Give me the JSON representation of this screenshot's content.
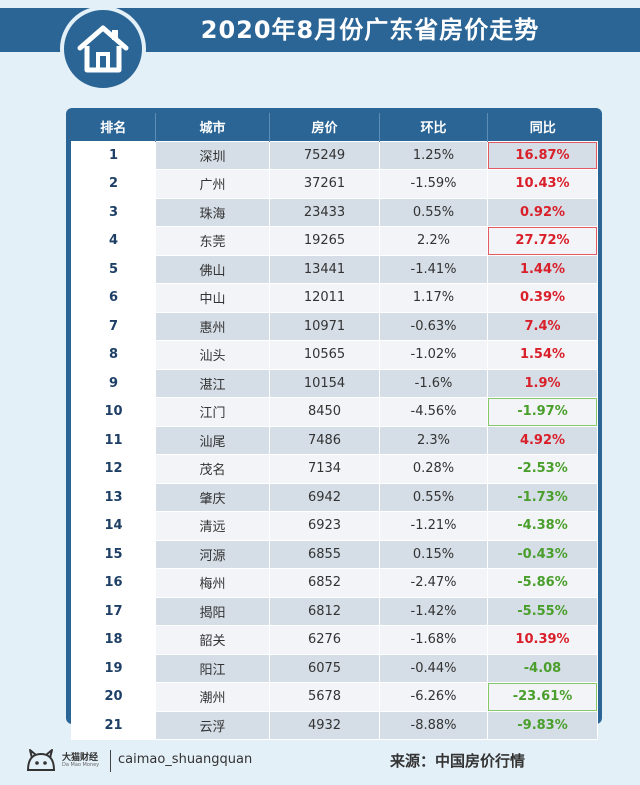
{
  "title": "2020年8月份广东省房价走势",
  "icons": {
    "logo": "house-icon",
    "brand": "cat-logo-icon"
  },
  "colors": {
    "header": "#2b6595",
    "up": "#d9202a",
    "down": "#4a9f2c"
  },
  "table": {
    "headers": [
      "排名",
      "城市",
      "房价",
      "环比",
      "同比"
    ],
    "rows": [
      {
        "rank": "1",
        "city": "深圳",
        "price": "75249",
        "mom": "1.25%",
        "yoy": "16.87%",
        "trend": "up"
      },
      {
        "rank": "2",
        "city": "广州",
        "price": "37261",
        "mom": "-1.59%",
        "yoy": "10.43%",
        "trend": "up"
      },
      {
        "rank": "3",
        "city": "珠海",
        "price": "23433",
        "mom": "0.55%",
        "yoy": "0.92%",
        "trend": "up"
      },
      {
        "rank": "4",
        "city": "东莞",
        "price": "19265",
        "mom": "2.2%",
        "yoy": "27.72%",
        "trend": "up"
      },
      {
        "rank": "5",
        "city": "佛山",
        "price": "13441",
        "mom": "-1.41%",
        "yoy": "1.44%",
        "trend": "up"
      },
      {
        "rank": "6",
        "city": "中山",
        "price": "12011",
        "mom": "1.17%",
        "yoy": "0.39%",
        "trend": "up"
      },
      {
        "rank": "7",
        "city": "惠州",
        "price": "10971",
        "mom": "-0.63%",
        "yoy": "7.4%",
        "trend": "up"
      },
      {
        "rank": "8",
        "city": "汕头",
        "price": "10565",
        "mom": "-1.02%",
        "yoy": "1.54%",
        "trend": "up"
      },
      {
        "rank": "9",
        "city": "湛江",
        "price": "10154",
        "mom": "-1.6%",
        "yoy": "1.9%",
        "trend": "up"
      },
      {
        "rank": "10",
        "city": "江门",
        "price": "8450",
        "mom": "-4.56%",
        "yoy": "-1.97%",
        "trend": "down"
      },
      {
        "rank": "11",
        "city": "汕尾",
        "price": "7486",
        "mom": "2.3%",
        "yoy": "4.92%",
        "trend": "up"
      },
      {
        "rank": "12",
        "city": "茂名",
        "price": "7134",
        "mom": "0.28%",
        "yoy": "-2.53%",
        "trend": "down"
      },
      {
        "rank": "13",
        "city": "肇庆",
        "price": "6942",
        "mom": "0.55%",
        "yoy": "-1.73%",
        "trend": "down"
      },
      {
        "rank": "14",
        "city": "清远",
        "price": "6923",
        "mom": "-1.21%",
        "yoy": "-4.38%",
        "trend": "down"
      },
      {
        "rank": "15",
        "city": "河源",
        "price": "6855",
        "mom": "0.15%",
        "yoy": "-0.43%",
        "trend": "down"
      },
      {
        "rank": "16",
        "city": "梅州",
        "price": "6852",
        "mom": "-2.47%",
        "yoy": "-5.86%",
        "trend": "down"
      },
      {
        "rank": "17",
        "city": "揭阳",
        "price": "6812",
        "mom": "-1.42%",
        "yoy": "-5.55%",
        "trend": "down"
      },
      {
        "rank": "18",
        "city": "韶关",
        "price": "6276",
        "mom": "-1.68%",
        "yoy": "10.39%",
        "trend": "up"
      },
      {
        "rank": "19",
        "city": "阳江",
        "price": "6075",
        "mom": "-0.44%",
        "yoy": "-4.08",
        "trend": "down"
      },
      {
        "rank": "20",
        "city": "潮州",
        "price": "5678",
        "mom": "-6.26%",
        "yoy": "-23.61%",
        "trend": "down"
      },
      {
        "rank": "21",
        "city": "云浮",
        "price": "4932",
        "mom": "-8.88%",
        "yoy": "-9.83%",
        "trend": "down"
      }
    ]
  },
  "footer": {
    "brand_name": "大猫财经",
    "brand_sub": "Da Mao Money",
    "handle": "caimao_shuangquan",
    "source": "来源：中国房价行情"
  }
}
